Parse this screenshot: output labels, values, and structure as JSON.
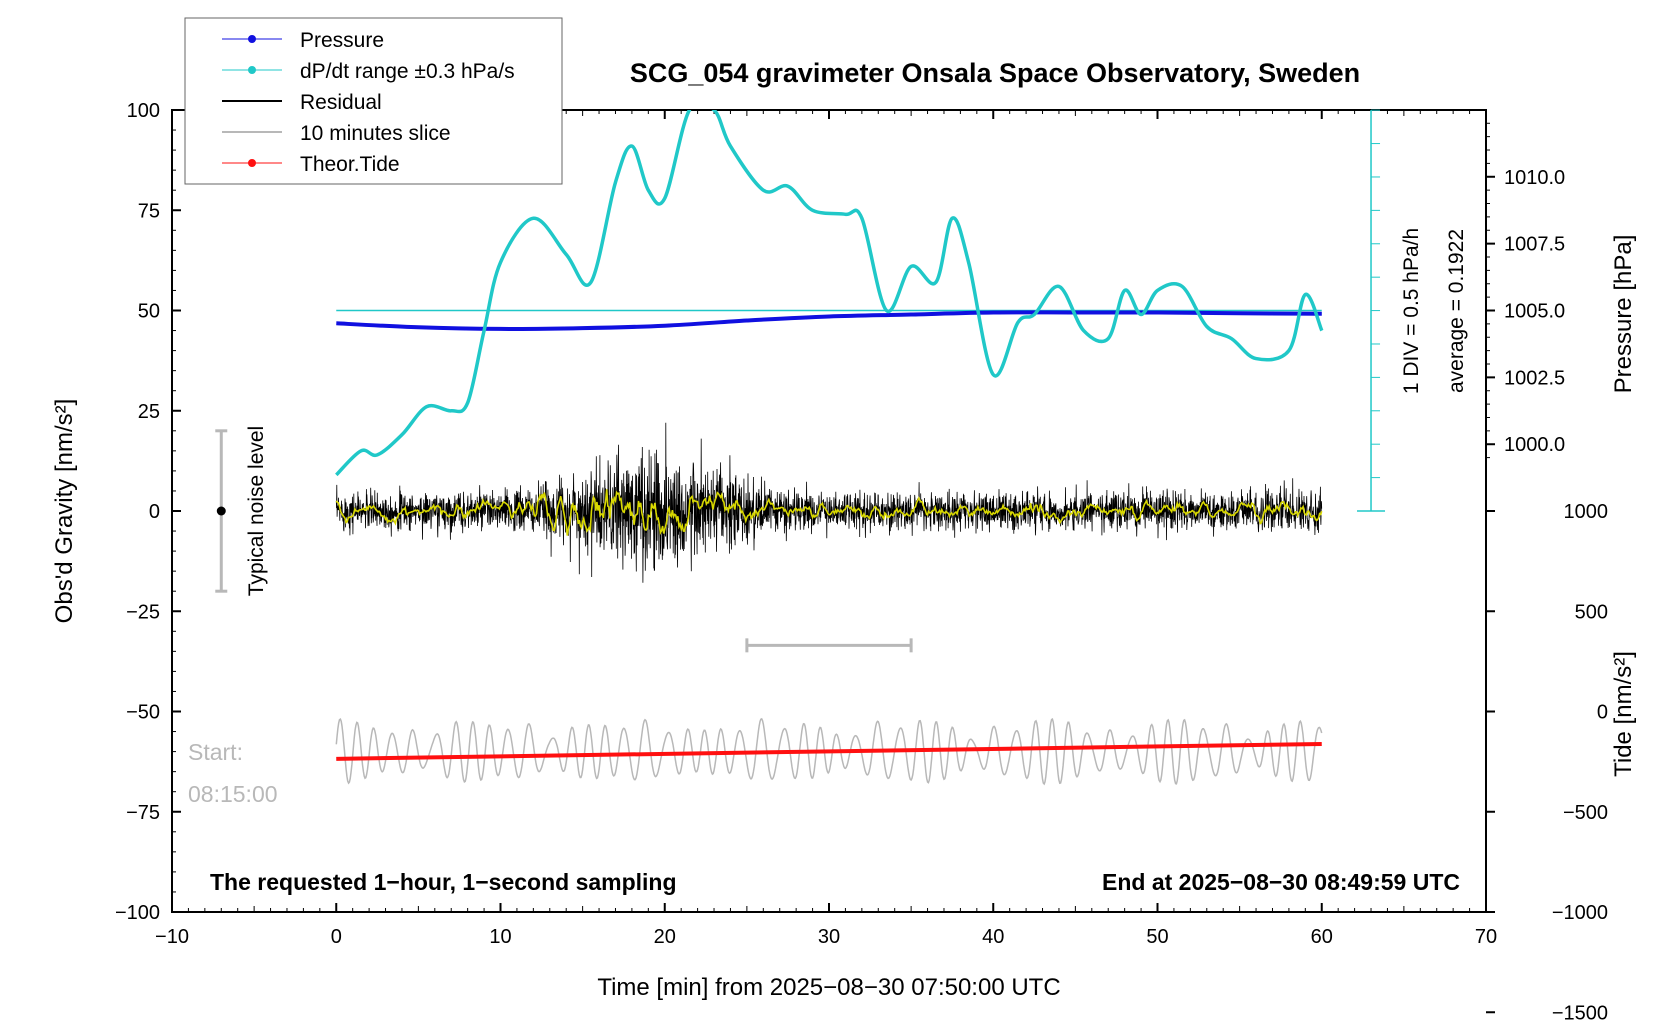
{
  "chart_data": {
    "type": "line",
    "title": "SCG_054 gravimeter Onsala Space Observatory, Sweden",
    "xlabel": "Time [min] from 2025−08−30 07:50:00 UTC",
    "ylabel_left": "Obs'd Gravity [nm/s²]",
    "ylabel_right_top": "Pressure [hPa]",
    "ylabel_right_bottom": "Tide [nm/s²]",
    "xlim": [
      -10,
      70
    ],
    "ylim": [
      -100,
      100
    ],
    "xticks": [
      "−10",
      "0",
      "10",
      "20",
      "30",
      "40",
      "50",
      "60",
      "70"
    ],
    "xtick_values": [
      -10,
      0,
      10,
      20,
      30,
      40,
      50,
      60,
      70
    ],
    "yticks": [
      "100",
      "75",
      "50",
      "25",
      "0",
      "−25",
      "−50",
      "−75",
      "−100"
    ],
    "ytick_values": [
      100,
      75,
      50,
      25,
      0,
      -25,
      -50,
      -75,
      -100
    ],
    "pressure_axis": {
      "ticks": [
        "1010.0",
        "1007.5",
        "1005.0",
        "1002.5",
        "1000.0"
      ],
      "tick_values": [
        1010.0,
        1007.5,
        1005.0,
        1002.5,
        1000.0
      ],
      "gravity_at_1005": 50,
      "gravity_per_hpa": 6.67
    },
    "tide_axis": {
      "ticks": [
        "1000",
        "500",
        "0",
        "−500",
        "−1000",
        "−1500"
      ],
      "tick_values": [
        1000,
        500,
        0,
        -500,
        -1000,
        -1500
      ],
      "gravity_at_0": -50,
      "gravity_per_unit": 0.05
    },
    "legend": [
      {
        "label": "Pressure",
        "color": "#1010e0",
        "marker": true
      },
      {
        "label": "dP/dt range ±0.3 hPa/s",
        "color": "#20c8c8",
        "marker": true
      },
      {
        "label": "Residual",
        "color": "#000000",
        "marker": false
      },
      {
        "label": "10 minutes slice",
        "color": "#b8b8b8",
        "marker": false
      },
      {
        "label": "Theor.Tide",
        "color": "#ff1010",
        "marker": true
      }
    ],
    "series": [
      {
        "name": "Pressure",
        "color": "#1010e0",
        "x": [
          0,
          5,
          10,
          15,
          20,
          25,
          30,
          35,
          40,
          45,
          50,
          55,
          60
        ],
        "y": [
          46.8,
          45.8,
          45.4,
          45.6,
          46.2,
          47.5,
          48.5,
          49.0,
          49.5,
          49.5,
          49.5,
          49.3,
          49.2
        ]
      },
      {
        "name": "dP/dt range ±0.3 hPa/s",
        "color": "#20c8c8",
        "x": [
          0,
          1.5,
          2.5,
          4,
          5.5,
          7,
          8,
          9,
          10,
          12,
          14,
          15.5,
          17,
          18,
          19,
          20,
          21.5,
          23,
          24,
          26,
          27.5,
          29,
          31,
          32,
          33.5,
          35,
          36.5,
          37.5,
          38.5,
          40,
          41.5,
          42.5,
          44,
          45.5,
          47,
          48,
          49,
          50,
          51.5,
          53,
          54.5,
          56,
          58,
          59,
          60
        ],
        "y": [
          9,
          15,
          14,
          19,
          26,
          25,
          27,
          45,
          62,
          73,
          64,
          57,
          82,
          91,
          80,
          78,
          100,
          100,
          91,
          80,
          81,
          75,
          74,
          73,
          50,
          61,
          57,
          73,
          62,
          34,
          47,
          49,
          56,
          45,
          43,
          55,
          49,
          55,
          56,
          46,
          43,
          38,
          40,
          54,
          45
        ]
      },
      {
        "name": "Theor.Tide",
        "color": "#ff1010",
        "x": [
          0,
          60
        ],
        "y": [
          -61.8,
          -58.1
        ]
      }
    ],
    "residual": {
      "name": "Residual",
      "color": "#000000",
      "x_range": [
        0,
        60
      ],
      "peak": 22,
      "trough": -21,
      "typical": 7
    },
    "residual_smoothed": {
      "name": "Residual (smoothed)",
      "color": "#d8d800"
    },
    "slice": {
      "name": "10 minutes slice",
      "color": "#b8b8b8",
      "x_range": [
        0,
        60
      ],
      "center": -60,
      "amplitude": 7,
      "bar": [
        25,
        35
      ],
      "bar_y": -33.5
    },
    "ref_line": {
      "y": 50,
      "x_range": [
        0,
        60
      ],
      "color": "#20c8c8"
    },
    "noise_bar": {
      "x": -7,
      "y": 0,
      "lower": -20,
      "upper": 20,
      "label": "Typical noise level"
    },
    "scale_bar": {
      "x": 63,
      "y_range": [
        0,
        100
      ],
      "label_div": "1 DIV = 0.5 hPa/h",
      "label_avg": "average = 0.1922"
    }
  },
  "annotations": {
    "requested": "The requested 1−hour, 1−second sampling",
    "end": "End at 2025−08−30 08:49:59 UTC",
    "start_label": "Start:",
    "start_time": "08:15:00"
  }
}
